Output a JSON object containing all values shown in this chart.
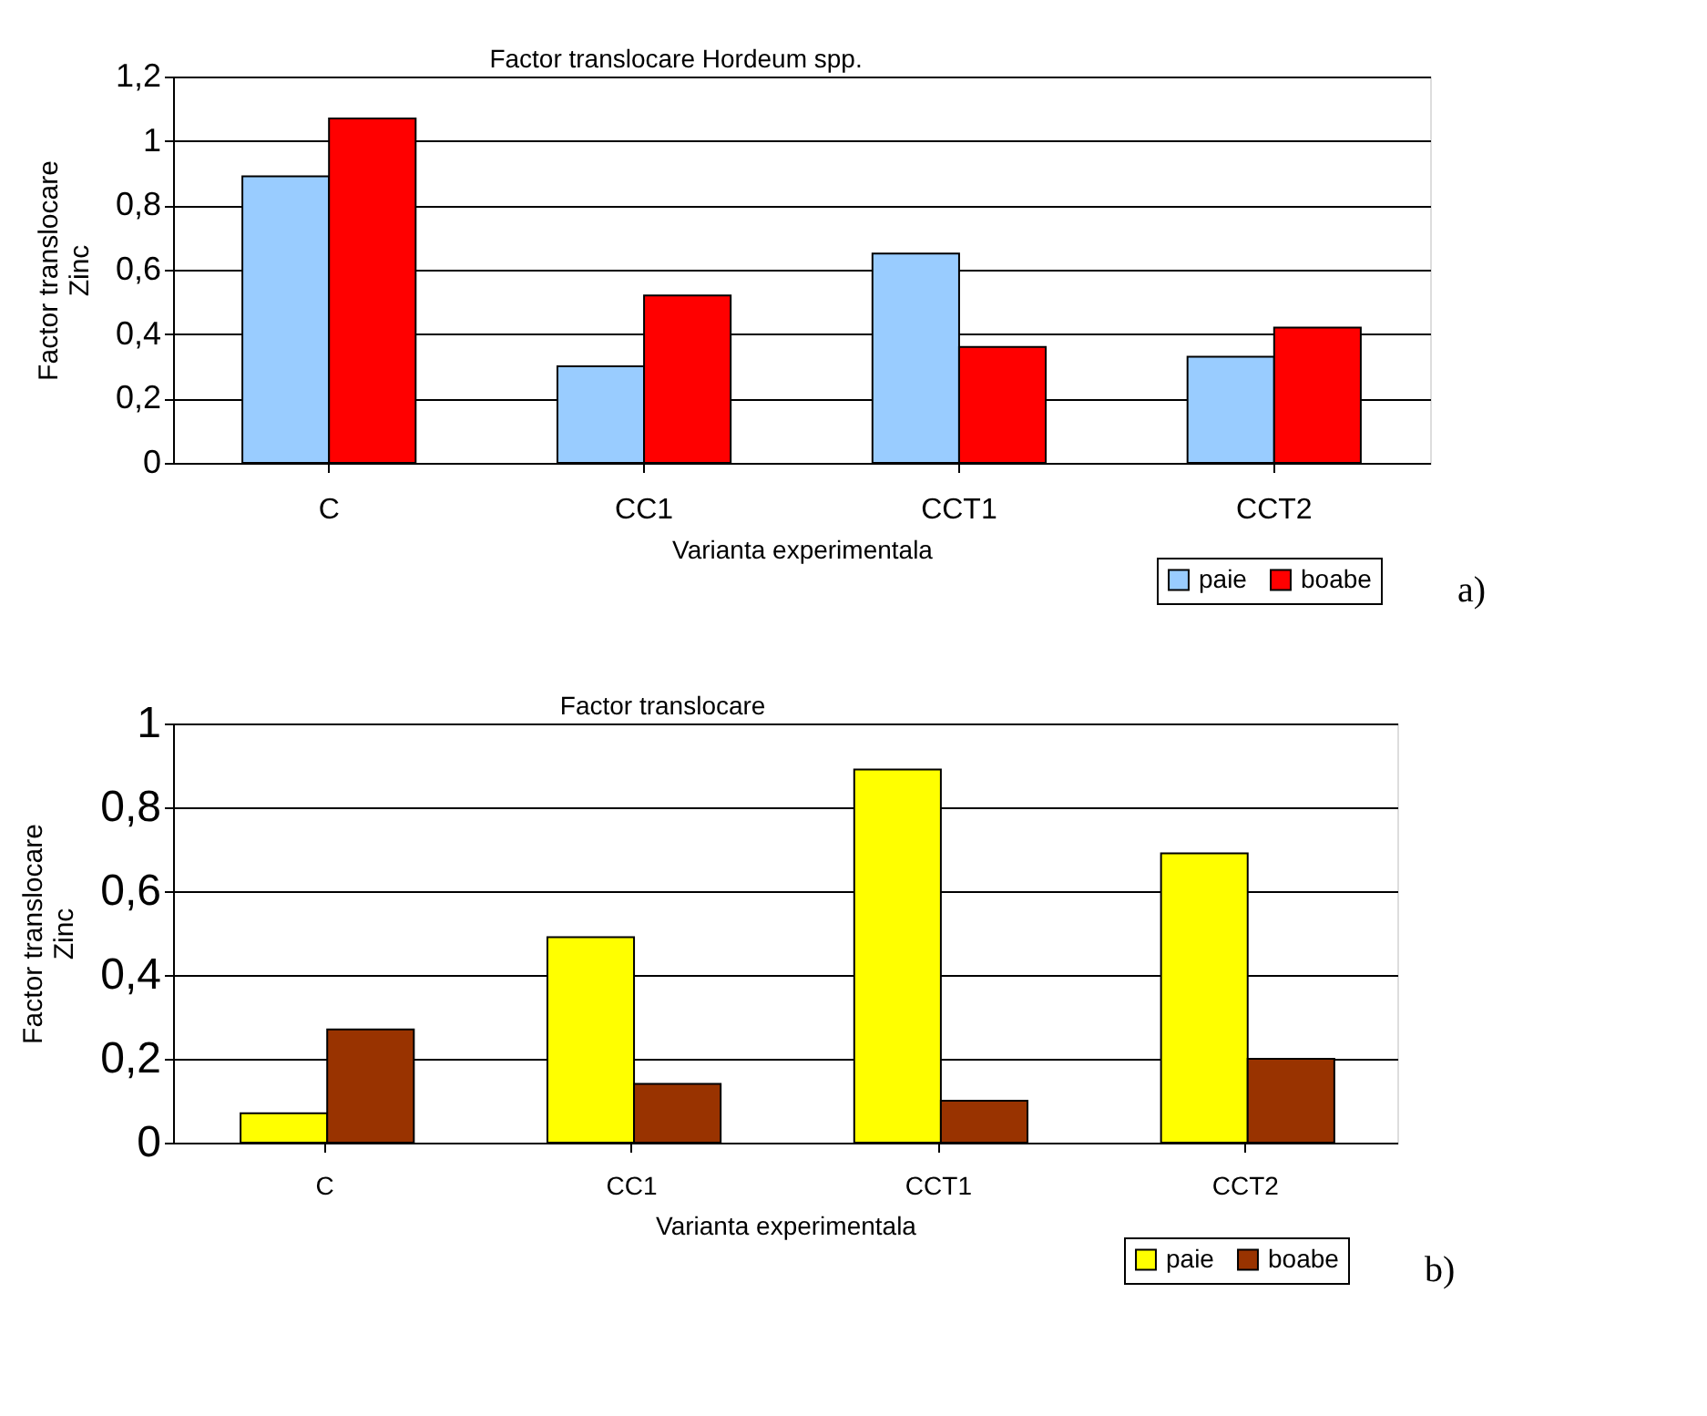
{
  "chart_data": [
    {
      "type": "bar",
      "title": "Factor translocare Hordeum spp.",
      "xlabel": "Varianta experimentala",
      "ylabel": "Factor translocare\nZinc",
      "categories": [
        "C",
        "CC1",
        "CCT1",
        "CCT2"
      ],
      "series": [
        {
          "name": "paie",
          "color": "#99ccff",
          "values": [
            0.89,
            0.3,
            0.65,
            0.33
          ]
        },
        {
          "name": "boabe",
          "color": "#ff0000",
          "values": [
            1.07,
            0.52,
            0.36,
            0.42
          ]
        }
      ],
      "ylim": [
        0,
        1.2
      ],
      "yticks": [
        {
          "value": 0,
          "label": "0"
        },
        {
          "value": 0.2,
          "label": "0,2"
        },
        {
          "value": 0.4,
          "label": "0,4"
        },
        {
          "value": 0.6,
          "label": "0,6"
        },
        {
          "value": 0.8,
          "label": "0,8"
        },
        {
          "value": 1,
          "label": "1"
        },
        {
          "value": 1.2,
          "label": "1,2"
        }
      ],
      "grid": "y",
      "legend": "bottom right",
      "annotations": [
        "a)"
      ]
    },
    {
      "type": "bar",
      "title": "Factor translocare",
      "xlabel": "Varianta experimentala",
      "ylabel": "Factor translocare\nZinc",
      "categories": [
        "C",
        "CC1",
        "CCT1",
        "CCT2"
      ],
      "series": [
        {
          "name": "paie",
          "color": "#ffff00",
          "values": [
            0.07,
            0.49,
            0.89,
            0.69
          ]
        },
        {
          "name": "boabe",
          "color": "#993300",
          "values": [
            0.27,
            0.14,
            0.1,
            0.2
          ]
        }
      ],
      "ylim": [
        0,
        1
      ],
      "yticks": [
        {
          "value": 0,
          "label": "0"
        },
        {
          "value": 0.2,
          "label": "0,2"
        },
        {
          "value": 0.4,
          "label": "0,4"
        },
        {
          "value": 0.6,
          "label": "0,6"
        },
        {
          "value": 0.8,
          "label": "0,8"
        },
        {
          "value": 1,
          "label": "1"
        }
      ],
      "grid": "y",
      "legend": "bottom right",
      "annotations": [
        "b)"
      ]
    }
  ]
}
